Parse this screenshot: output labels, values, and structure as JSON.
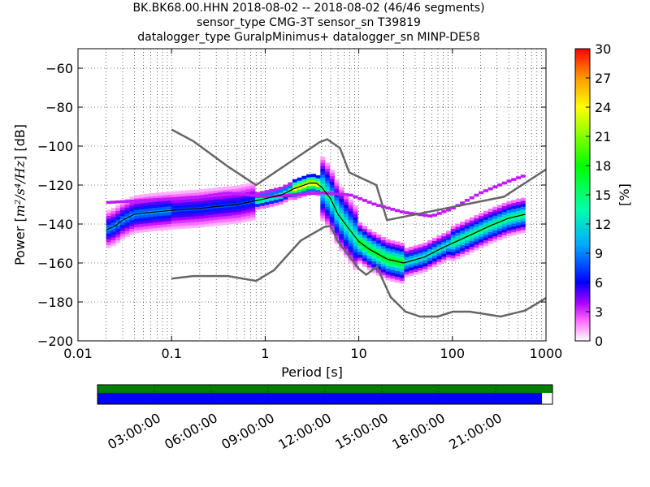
{
  "figure": {
    "title_lines": [
      "BK.BK68.00.HHN   2018-08-02 -- 2018-08-02  (46/46 segments)",
      "sensor_type CMG-3T sensor_sn T39819",
      "datalogger_type GuralpMinimus+ datalogger_sn MINP-DE58"
    ]
  },
  "chart_data": {
    "type": "heatmap",
    "xlabel": "Period [s]",
    "ylabel": "Power [m²/s⁴/Hz] [dB]",
    "ylabel_prefix": "Power [",
    "ylabel_math": "m²/s⁴/Hz",
    "ylabel_suffix": "] [dB]",
    "x_scale": "log",
    "xlim": [
      0.01,
      1000
    ],
    "ylim": [
      -200,
      -50
    ],
    "x_ticks": [
      0.01,
      0.1,
      1,
      10,
      100,
      1000
    ],
    "x_tick_labels": [
      "0.01",
      "0.1",
      "1",
      "10",
      "100",
      "1000"
    ],
    "y_ticks": [
      -200,
      -180,
      -160,
      -140,
      -120,
      -100,
      -80,
      -60
    ],
    "y_tick_labels": [
      "−200",
      "−180",
      "−160",
      "−140",
      "−120",
      "−100",
      "−80",
      "−60"
    ],
    "grid": true,
    "colorbar": {
      "label": "[%]",
      "range": [
        0,
        30
      ],
      "ticks": [
        0,
        3,
        6,
        9,
        12,
        15,
        18,
        21,
        24,
        27,
        30
      ],
      "tick_labels": [
        "0",
        "3",
        "6",
        "9",
        "12",
        "15",
        "18",
        "21",
        "24",
        "27",
        "30"
      ]
    },
    "noise_models": [
      {
        "points": [
          [
            0.1,
            -91.5
          ],
          [
            0.17,
            -97.4
          ],
          [
            0.4,
            -110.5
          ],
          [
            0.8,
            -120
          ],
          [
            3.8,
            -98
          ],
          [
            4.6,
            -96.5
          ],
          [
            6.3,
            -101
          ],
          [
            7.9,
            -113.5
          ],
          [
            15.4,
            -120
          ],
          [
            20,
            -138
          ],
          [
            354.8,
            -126
          ],
          [
            1000,
            -112
          ]
        ]
      },
      {
        "points": [
          [
            0.1,
            -168
          ],
          [
            0.17,
            -166.7
          ],
          [
            0.4,
            -166.7
          ],
          [
            0.8,
            -169.2
          ],
          [
            1.24,
            -163.7
          ],
          [
            2.4,
            -148.5
          ],
          [
            4.3,
            -141.5
          ],
          [
            5,
            -141
          ],
          [
            6,
            -149
          ],
          [
            10,
            -163
          ],
          [
            12,
            -166
          ],
          [
            15.6,
            -162
          ],
          [
            21.9,
            -177.5
          ],
          [
            31.6,
            -185
          ],
          [
            45,
            -187.5
          ],
          [
            70,
            -187.5
          ],
          [
            101,
            -185
          ],
          [
            154,
            -185
          ],
          [
            328,
            -187.5
          ],
          [
            600,
            -184.4
          ],
          [
            1000,
            -178
          ]
        ]
      }
    ],
    "median_curve": [
      [
        0.02,
        -143
      ],
      [
        0.025,
        -141
      ],
      [
        0.03,
        -138
      ],
      [
        0.04,
        -135
      ],
      [
        0.06,
        -134
      ],
      [
        0.1,
        -133
      ],
      [
        0.2,
        -132
      ],
      [
        0.3,
        -131
      ],
      [
        0.5,
        -130
      ],
      [
        1,
        -127
      ],
      [
        1.5,
        -125
      ],
      [
        2,
        -122
      ],
      [
        3,
        -119
      ],
      [
        3.5,
        -119
      ],
      [
        4,
        -121
      ],
      [
        5,
        -127
      ],
      [
        6,
        -135
      ],
      [
        8,
        -143
      ],
      [
        10,
        -149
      ],
      [
        13,
        -153
      ],
      [
        20,
        -158
      ],
      [
        30,
        -160
      ],
      [
        50,
        -157
      ],
      [
        80,
        -152
      ],
      [
        150,
        -146
      ],
      [
        250,
        -141
      ],
      [
        400,
        -137
      ],
      [
        600,
        -135
      ]
    ],
    "psd_bands": [
      {
        "x": [
          0.02,
          0.1
        ],
        "y": [
          -146,
          -128
        ],
        "peak": 9
      },
      {
        "x": [
          0.1,
          0.8
        ],
        "y": [
          -142,
          -124
        ],
        "peak": 7
      },
      {
        "x": [
          0.8,
          2
        ],
        "y": [
          -130,
          -122
        ],
        "peak": 16
      },
      {
        "x": [
          2,
          4
        ],
        "y": [
          -126,
          -116
        ],
        "peak": 26
      },
      {
        "x": [
          4,
          10
        ],
        "y": [
          -152,
          -120
        ],
        "peak": 14
      },
      {
        "x": [
          10,
          30
        ],
        "y": [
          -165,
          -145
        ],
        "peak": 18
      },
      {
        "x": [
          30,
          100
        ],
        "y": [
          -162,
          -148
        ],
        "peak": 13
      },
      {
        "x": [
          100,
          600
        ],
        "y": [
          -150,
          -133
        ],
        "peak": 15
      }
    ],
    "outlier_curve": [
      [
        0.02,
        -129
      ],
      [
        0.1,
        -127
      ],
      [
        0.2,
        -126
      ],
      [
        0.4,
        -124
      ],
      [
        1,
        -126
      ],
      [
        4,
        -124
      ],
      [
        8,
        -125
      ],
      [
        15,
        -130
      ],
      [
        30,
        -134
      ],
      [
        60,
        -136
      ],
      [
        100,
        -132
      ],
      [
        200,
        -124
      ],
      [
        400,
        -118
      ],
      [
        600,
        -115
      ]
    ],
    "coverage_bar": {
      "time_tick_labels": [
        "03:00:00",
        "06:00:00",
        "09:00:00",
        "12:00:00",
        "15:00:00",
        "18:00:00",
        "21:00:00"
      ],
      "data_fraction": 0.977,
      "colors": {
        "available": "#008000",
        "used": "#0000ff"
      }
    }
  }
}
